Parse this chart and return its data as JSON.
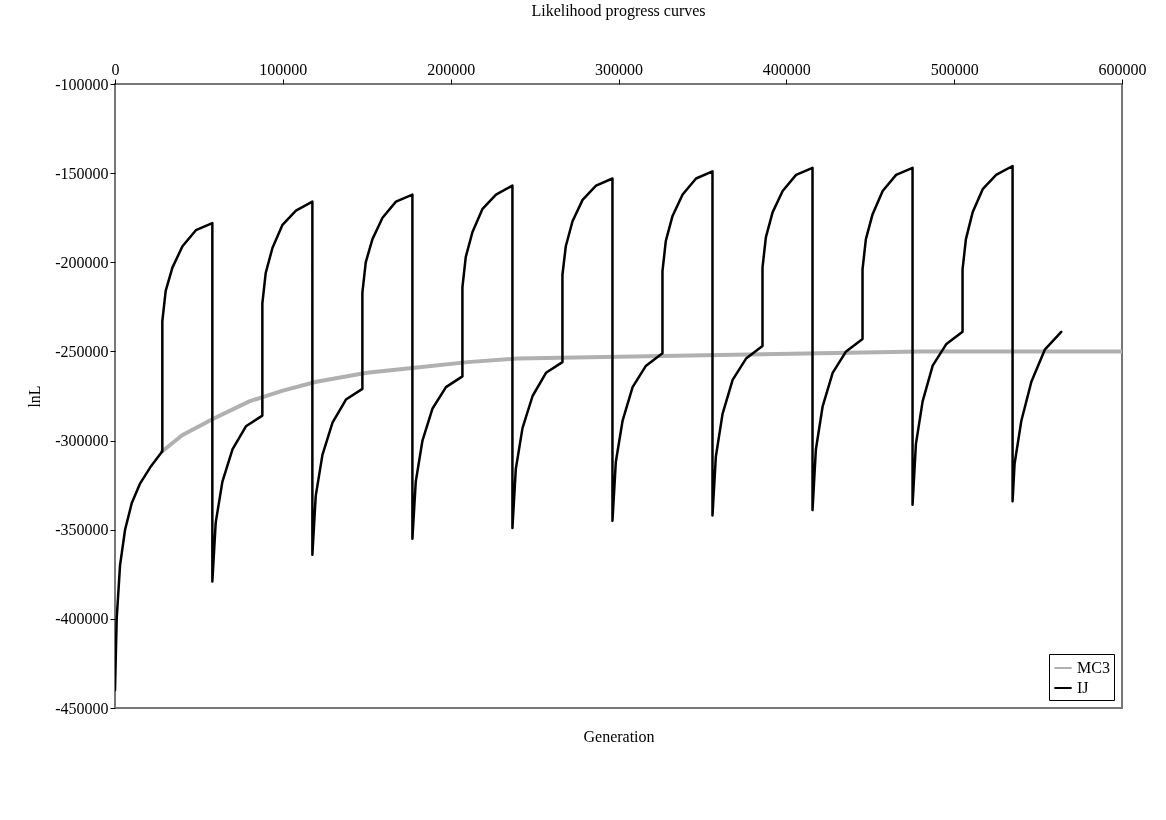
{
  "chart_data": {
    "type": "line",
    "title": "Likelihood progress curves",
    "xlabel": "Generation",
    "ylabel": "lnL",
    "xlim": [
      0,
      600000
    ],
    "xticks": [
      0,
      100000,
      200000,
      300000,
      400000,
      500000,
      600000
    ],
    "ylim": [
      -450000,
      -100000
    ],
    "yticks": [
      -100000,
      -150000,
      -200000,
      -250000,
      -300000,
      -350000,
      -400000,
      -450000
    ],
    "grid": false,
    "legend": "bottom right",
    "marker": "none",
    "series": [
      {
        "name": "MC3",
        "color": "#b0b0b0",
        "x": [
          28200,
          40000,
          58000,
          80000,
          100000,
          120000,
          150000,
          180000,
          210000,
          240000,
          300000,
          360000,
          420000,
          480000,
          540000,
          600000
        ],
        "values": [
          -306000,
          -297000,
          -288000,
          -278000,
          -272000,
          -267000,
          -262000,
          -259000,
          -256000,
          -254000,
          -253000,
          -252000,
          -251000,
          -250000,
          -250000,
          -250000
        ]
      },
      {
        "name": "IJ",
        "color": "#000000",
        "x": [
          0,
          1000,
          3000,
          6000,
          10000,
          15000,
          21000,
          28200,
          28200,
          30200,
          34200,
          40200,
          48200,
          58000,
          58000,
          60000,
          64000,
          70000,
          78000,
          87800,
          87800,
          89800,
          93800,
          99800,
          107800,
          117600,
          117600,
          119600,
          123600,
          129600,
          137600,
          147400,
          147400,
          149400,
          153400,
          159400,
          167400,
          177200,
          177200,
          179200,
          183200,
          189200,
          197200,
          207000,
          207000,
          209000,
          213000,
          219000,
          227000,
          236800,
          236800,
          238800,
          242800,
          248800,
          256800,
          266600,
          266600,
          268600,
          272600,
          278600,
          286600,
          296400,
          296400,
          298400,
          302400,
          308400,
          316400,
          326200,
          326200,
          328200,
          332200,
          338200,
          346200,
          356000,
          356000,
          358000,
          362000,
          368000,
          376000,
          385800,
          385800,
          387800,
          391800,
          397800,
          405800,
          415600,
          415600,
          417600,
          421600,
          427600,
          435600,
          445400,
          445400,
          447400,
          451400,
          457400,
          465400,
          475200,
          475200,
          477200,
          481200,
          487200,
          495200,
          505000,
          505000,
          507000,
          511000,
          517000,
          525000,
          534800,
          534800,
          536000,
          540000,
          546000,
          554000,
          563800
        ],
        "values": [
          -440000,
          -400000,
          -370000,
          -350000,
          -335000,
          -324000,
          -315000,
          -306000,
          -233000,
          -216000,
          -203000,
          -191000,
          -182000,
          -178000,
          -379000,
          -346000,
          -323000,
          -305000,
          -292000,
          -286000,
          -223000,
          -206000,
          -192000,
          -179000,
          -171000,
          -166000,
          -364000,
          -331000,
          -308000,
          -290000,
          -277000,
          -271000,
          -217000,
          -200000,
          -187000,
          -175000,
          -166000,
          -162000,
          -355000,
          -323000,
          -300000,
          -282000,
          -270000,
          -264000,
          -214000,
          -197000,
          -183000,
          -170000,
          -162000,
          -157000,
          -349000,
          -316000,
          -293000,
          -275000,
          -262000,
          -256000,
          -207000,
          -191000,
          -177000,
          -165000,
          -157000,
          -153000,
          -345000,
          -312000,
          -289000,
          -270000,
          -258000,
          -251000,
          -205000,
          -188000,
          -174000,
          -162000,
          -153000,
          -149000,
          -342000,
          -309000,
          -285000,
          -266000,
          -254000,
          -247000,
          -203000,
          -186000,
          -172000,
          -160000,
          -151000,
          -147000,
          -339000,
          -305000,
          -281000,
          -262000,
          -250000,
          -243000,
          -204000,
          -187000,
          -173000,
          -160000,
          -151000,
          -147000,
          -336000,
          -302000,
          -278000,
          -258000,
          -246000,
          -239000,
          -204000,
          -187000,
          -172000,
          -159000,
          -151000,
          -146000,
          -334000,
          -313000,
          -289000,
          -267000,
          -249000,
          -239000
        ]
      }
    ]
  }
}
